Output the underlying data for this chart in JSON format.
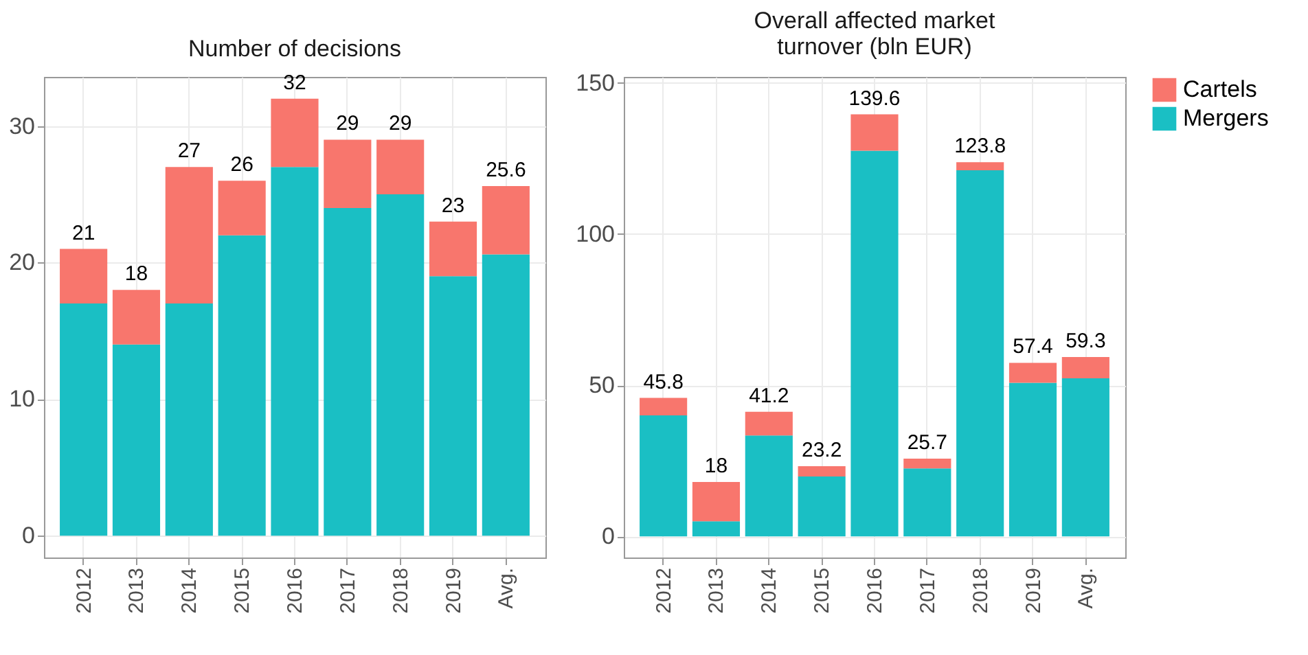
{
  "chart_data": [
    {
      "type": "bar",
      "title": "Number of decisions",
      "stacked": true,
      "categories": [
        "2012",
        "2013",
        "2014",
        "2015",
        "2016",
        "2017",
        "2018",
        "2019",
        "Avg."
      ],
      "series": [
        {
          "name": "Mergers",
          "color": "#1abfc4",
          "values": [
            17,
            14,
            17,
            22,
            27,
            24,
            25,
            19,
            20.6
          ]
        },
        {
          "name": "Cartels",
          "color": "#f8766d",
          "values": [
            4,
            4,
            10,
            4,
            5,
            5,
            4,
            4,
            5.0
          ]
        }
      ],
      "totals": [
        "21",
        "18",
        "27",
        "26",
        "32",
        "29",
        "29",
        "23",
        "25.6"
      ],
      "ylim": [
        -1.6,
        33.6
      ],
      "yticks": [
        0,
        10,
        20,
        30
      ],
      "grid": true,
      "legend": "right"
    },
    {
      "type": "bar",
      "title": "Overall affected market turnover (bln EUR)",
      "stacked": true,
      "categories": [
        "2012",
        "2013",
        "2014",
        "2015",
        "2016",
        "2017",
        "2018",
        "2019",
        "Avg."
      ],
      "series": [
        {
          "name": "Mergers",
          "color": "#1abfc4",
          "values": [
            40,
            5,
            33.4,
            19.8,
            127.6,
            22.5,
            121.1,
            50.8,
            52.3
          ]
        },
        {
          "name": "Cartels",
          "color": "#f8766d",
          "values": [
            5.8,
            13,
            7.8,
            3.4,
            12.0,
            3.2,
            2.7,
            6.6,
            7.0
          ]
        }
      ],
      "totals": [
        "45.8",
        "18",
        "41.2",
        "23.2",
        "139.6",
        "25.7",
        "123.8",
        "57.4",
        "59.3"
      ],
      "ylim": [
        -7,
        152
      ],
      "yticks": [
        0,
        50,
        100,
        150
      ],
      "grid": true,
      "legend": "right"
    }
  ]
}
